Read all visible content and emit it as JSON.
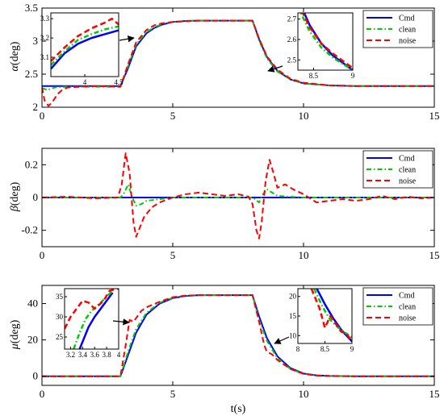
{
  "figure": {
    "x_axis_label": "t(s)",
    "colors": {
      "cmd": "#0000ff",
      "clean": "#00cc00",
      "noise": "#ff0000"
    }
  },
  "chart_data": [
    {
      "type": "line",
      "ylabel_symbol": "α",
      "ylabel_unit": "(deg)",
      "xlim": [
        0,
        15
      ],
      "ylim": [
        2,
        3.5
      ],
      "xticks": [
        "0",
        "5",
        "10",
        "15"
      ],
      "yticks": [
        "2",
        "2.5",
        "3",
        "3.5"
      ],
      "legend": [
        "Cmd",
        "clean",
        "noise"
      ],
      "legend_position": "top-right",
      "series": [
        {
          "name": "Cmd",
          "style": "solid",
          "x": [
            0,
            2.9,
            3.0,
            3.3,
            3.6,
            4.0,
            4.3,
            4.6,
            5.0,
            5.5,
            6.0,
            8.0,
            8.05,
            8.3,
            8.6,
            9.0,
            9.5,
            10.0,
            11.0,
            12.0,
            15.0
          ],
          "y": [
            2.32,
            2.32,
            2.32,
            2.6,
            2.92,
            3.12,
            3.2,
            3.25,
            3.29,
            3.305,
            3.31,
            3.31,
            3.31,
            3.03,
            2.76,
            2.55,
            2.42,
            2.36,
            2.33,
            2.32,
            2.32
          ]
        },
        {
          "name": "clean",
          "style": "dashdot",
          "x": [
            0,
            0.2,
            0.5,
            1.0,
            2.9,
            3.0,
            3.3,
            3.6,
            4.0,
            4.3,
            4.6,
            5.0,
            5.5,
            6.0,
            8.0,
            8.05,
            8.3,
            8.6,
            9.0,
            9.5,
            10.0,
            11.0,
            12.0,
            15.0
          ],
          "y": [
            2.29,
            2.26,
            2.3,
            2.31,
            2.31,
            2.31,
            2.63,
            2.95,
            3.14,
            3.21,
            3.26,
            3.29,
            3.305,
            3.31,
            3.31,
            3.31,
            3.01,
            2.74,
            2.54,
            2.42,
            2.36,
            2.33,
            2.32,
            2.32
          ]
        },
        {
          "name": "noise",
          "style": "dashed",
          "x": [
            0,
            0.1,
            0.25,
            0.4,
            0.6,
            0.8,
            1.0,
            1.5,
            2.0,
            2.9,
            3.0,
            3.3,
            3.6,
            4.0,
            4.3,
            4.6,
            5.0,
            5.5,
            6.0,
            8.0,
            8.05,
            8.3,
            8.6,
            9.0,
            9.5,
            10.0,
            11.0,
            12.0,
            13.0,
            15.0
          ],
          "y": [
            2.3,
            2.1,
            2.02,
            2.08,
            2.2,
            2.27,
            2.3,
            2.31,
            2.32,
            2.31,
            2.31,
            2.66,
            2.98,
            3.17,
            3.24,
            3.27,
            3.29,
            3.3,
            3.31,
            3.31,
            3.31,
            3.04,
            2.77,
            2.57,
            2.43,
            2.37,
            2.33,
            2.32,
            2.32,
            2.32
          ]
        }
      ],
      "insets": [
        {
          "xlim": [
            3.5,
            4.5
          ],
          "ylim": [
            3.0,
            3.33
          ],
          "xticks": [
            "4",
            "4.5"
          ],
          "yticks": [
            "3.1",
            "3.2",
            "3.3"
          ],
          "series": [
            {
              "name": "Cmd",
              "x": [
                3.5,
                3.7,
                3.9,
                4.1,
                4.3,
                4.5
              ],
              "y": [
                3.04,
                3.12,
                3.17,
                3.2,
                3.22,
                3.24
              ]
            },
            {
              "name": "clean",
              "x": [
                3.5,
                3.7,
                3.9,
                4.1,
                4.3,
                4.5
              ],
              "y": [
                3.06,
                3.13,
                3.19,
                3.22,
                3.245,
                3.26
              ]
            },
            {
              "name": "noise",
              "x": [
                3.5,
                3.7,
                3.9,
                4.1,
                4.3,
                4.4,
                4.5
              ],
              "y": [
                3.08,
                3.15,
                3.21,
                3.25,
                3.28,
                3.3,
                3.27
              ]
            }
          ]
        },
        {
          "xlim": [
            8.3,
            9.0
          ],
          "ylim": [
            2.45,
            2.73
          ],
          "xticks": [
            "8.5",
            "9"
          ],
          "yticks": [
            "2.5",
            "2.6",
            "2.7"
          ],
          "series": [
            {
              "name": "Cmd",
              "x": [
                8.3,
                8.45,
                8.6,
                8.75,
                9.0
              ],
              "y": [
                2.8,
                2.67,
                2.58,
                2.52,
                2.45
              ]
            },
            {
              "name": "clean",
              "x": [
                8.3,
                8.45,
                8.6,
                8.75,
                9.0
              ],
              "y": [
                2.76,
                2.64,
                2.56,
                2.51,
                2.45
              ]
            },
            {
              "name": "noise",
              "x": [
                8.3,
                8.45,
                8.6,
                8.75,
                9.0
              ],
              "y": [
                2.78,
                2.66,
                2.58,
                2.53,
                2.46
              ]
            }
          ]
        }
      ]
    },
    {
      "type": "line",
      "ylabel_symbol": "β",
      "ylabel_unit": "(deg)",
      "xlim": [
        0,
        15
      ],
      "ylim": [
        -0.3,
        0.3
      ],
      "xticks": [
        "0",
        "5",
        "10",
        "15"
      ],
      "yticks": [
        "-0.2",
        "0",
        "0.2"
      ],
      "legend": [
        "Cmd",
        "clean",
        "noise"
      ],
      "legend_position": "top-right",
      "series": [
        {
          "name": "Cmd",
          "style": "solid",
          "x": [
            0,
            15
          ],
          "y": [
            0,
            0
          ]
        },
        {
          "name": "clean",
          "style": "dashdot",
          "x": [
            0,
            3.0,
            3.15,
            3.3,
            3.45,
            3.6,
            3.8,
            4.0,
            4.5,
            5.0,
            8.0,
            8.15,
            8.3,
            8.45,
            8.6,
            8.8,
            9.0,
            9.5,
            10.0,
            15.0
          ],
          "y": [
            0,
            0,
            0.03,
            0.08,
            0.0,
            -0.05,
            -0.04,
            -0.02,
            -0.01,
            0,
            0,
            -0.01,
            -0.03,
            0.02,
            0.05,
            0.03,
            0.01,
            0.005,
            0,
            0
          ]
        },
        {
          "name": "noise",
          "style": "dashed",
          "x": [
            0,
            1.0,
            2.0,
            2.9,
            3.05,
            3.2,
            3.35,
            3.5,
            3.6,
            3.7,
            3.9,
            4.2,
            4.5,
            5.0,
            5.5,
            6.0,
            6.5,
            7.0,
            7.5,
            7.9,
            8.05,
            8.2,
            8.3,
            8.4,
            8.55,
            8.7,
            8.85,
            9.0,
            9.3,
            9.6,
            10.0,
            10.5,
            11.0,
            11.5,
            12.0,
            12.5,
            13.0,
            13.5,
            14.0,
            14.5,
            15.0
          ],
          "y": [
            0.0,
            0.005,
            -0.005,
            0.0,
            0.08,
            0.27,
            0.15,
            -0.15,
            -0.24,
            -0.2,
            -0.12,
            -0.06,
            -0.03,
            0.0,
            0.02,
            0.03,
            0.02,
            0.01,
            0.02,
            0.005,
            -0.04,
            -0.2,
            -0.25,
            -0.15,
            0.1,
            0.23,
            0.15,
            0.06,
            0.08,
            0.05,
            0.02,
            -0.03,
            -0.02,
            -0.01,
            -0.02,
            -0.01,
            0.01,
            -0.01,
            0.005,
            -0.005,
            0.0
          ]
        }
      ]
    },
    {
      "type": "line",
      "ylabel_symbol": "μ",
      "ylabel_unit": "(deg)",
      "xlim": [
        0,
        15
      ],
      "ylim": [
        -5,
        50
      ],
      "xticks": [
        "0",
        "5",
        "10",
        "15"
      ],
      "yticks": [
        "0",
        "20",
        "40"
      ],
      "legend": [
        "Cmd",
        "clean",
        "noise"
      ],
      "legend_position": "top-right",
      "series": [
        {
          "name": "Cmd",
          "style": "solid",
          "x": [
            0,
            2.95,
            3.0,
            3.3,
            3.6,
            4.0,
            4.5,
            5.0,
            5.5,
            6.0,
            8.0,
            8.05,
            8.3,
            8.6,
            9.0,
            9.5,
            10.0,
            10.5,
            11.0,
            12.0,
            15.0
          ],
          "y": [
            0,
            0,
            0,
            12,
            24,
            34,
            40,
            43,
            44.2,
            44.6,
            44.6,
            44.6,
            33,
            21,
            11,
            4.5,
            1.5,
            0.5,
            0.2,
            0,
            0
          ]
        },
        {
          "name": "clean",
          "style": "dashdot",
          "x": [
            0,
            2.95,
            3.0,
            3.3,
            3.6,
            4.0,
            4.5,
            5.0,
            5.5,
            6.0,
            8.0,
            8.05,
            8.3,
            8.6,
            9.0,
            9.5,
            10.0,
            10.5,
            11.0,
            12.0,
            15.0
          ],
          "y": [
            0,
            0,
            0,
            14,
            26,
            35,
            40.5,
            43.2,
            44.3,
            44.6,
            44.6,
            44.6,
            31,
            19.5,
            10,
            4,
            1.3,
            0.4,
            0.1,
            0,
            0
          ]
        },
        {
          "name": "noise",
          "style": "dashed",
          "x": [
            0,
            2.95,
            3.0,
            3.2,
            3.35,
            3.5,
            3.6,
            3.8,
            4.0,
            4.5,
            5.0,
            5.5,
            6.0,
            8.0,
            8.05,
            8.3,
            8.5,
            8.6,
            8.8,
            9.0,
            9.5,
            10.0,
            10.5,
            11.0,
            12.0,
            15.0
          ],
          "y": [
            0,
            0,
            0,
            17,
            31,
            30,
            32,
            36,
            38,
            41,
            43.5,
            44.4,
            44.6,
            44.6,
            44.6,
            30,
            17,
            13.5,
            12,
            9,
            4,
            1.3,
            0.4,
            0.1,
            0,
            0
          ]
        }
      ],
      "insets": [
        {
          "xlim": [
            3.1,
            4.0
          ],
          "ylim": [
            22,
            37
          ],
          "xticks": [
            "3.2",
            "3.4",
            "3.6",
            "3.8",
            "4"
          ],
          "yticks": [
            "25",
            "30",
            "35"
          ],
          "series": [
            {
              "name": "Cmd",
              "x": [
                3.35,
                3.5,
                3.6,
                3.7,
                3.8,
                3.9
              ],
              "y": [
                22,
                27.5,
                30,
                32,
                34,
                36
              ]
            },
            {
              "name": "clean",
              "x": [
                3.25,
                3.35,
                3.45,
                3.55,
                3.7,
                3.8,
                3.9
              ],
              "y": [
                22,
                26,
                29.5,
                31.5,
                33.5,
                35,
                36.5
              ]
            },
            {
              "name": "noise",
              "x": [
                3.1,
                3.2,
                3.3,
                3.4,
                3.5,
                3.6,
                3.75,
                3.85,
                4.0
              ],
              "y": [
                27,
                30,
                32,
                34,
                33.5,
                32,
                34,
                36.5,
                37
              ]
            }
          ]
        },
        {
          "xlim": [
            8.0,
            9.0
          ],
          "ylim": [
            8,
            22
          ],
          "xticks": [
            "8",
            "8.5",
            "9"
          ],
          "yticks": [
            "10",
            "15",
            "20"
          ],
          "series": [
            {
              "name": "Cmd",
              "x": [
                8.35,
                8.5,
                8.65,
                8.8,
                9.0
              ],
              "y": [
                22,
                18,
                14.5,
                11.5,
                8.5
              ]
            },
            {
              "name": "clean",
              "x": [
                8.3,
                8.45,
                8.6,
                8.75,
                8.9,
                9.0
              ],
              "y": [
                22,
                17.5,
                14,
                12,
                10.5,
                9.5
              ]
            },
            {
              "name": "noise",
              "x": [
                8.25,
                8.4,
                8.5,
                8.6,
                8.7,
                8.8,
                8.9,
                9.0
              ],
              "y": [
                22,
                17,
                12,
                15,
                13,
                11,
                10.5,
                8.5
              ]
            }
          ]
        }
      ]
    }
  ]
}
